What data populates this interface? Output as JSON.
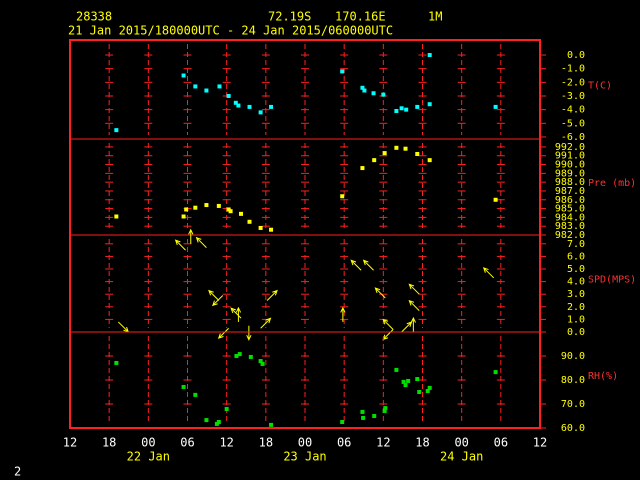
{
  "header": {
    "station": "28338",
    "latitude": "72.19S",
    "longitude": "170.16E",
    "level": "1M",
    "period": "21 Jan 2015/180000UTC - 24 Jan 2015/060000UTC"
  },
  "page_number": "2",
  "chart_data": [
    {
      "type": "scatter",
      "y_label": "T(C)",
      "color": "#00ffff",
      "xlim": [
        0,
        72
      ],
      "ylim": [
        -6.15,
        1.1
      ],
      "yticks": [
        {
          "value": 0,
          "label": "0.0"
        },
        {
          "value": -1,
          "label": "-1.0"
        },
        {
          "value": -2,
          "label": "-2.0"
        },
        {
          "value": -3,
          "label": "-3.0"
        },
        {
          "value": -4,
          "label": "-4.0"
        },
        {
          "value": -5,
          "label": "-5.0"
        },
        {
          "value": -6,
          "label": "-6.0"
        }
      ],
      "x": [
        7.1,
        17.4,
        19.2,
        20.9,
        22.9,
        24.3,
        25.4,
        25.8,
        27.5,
        29.2,
        30.8,
        41.7,
        44.8,
        45.1,
        46.5,
        48.0,
        50.0,
        50.8,
        51.5,
        53.2,
        55.1,
        55.1,
        65.2
      ],
      "values": [
        -5.5,
        -1.5,
        -2.3,
        -2.6,
        -2.3,
        -3.0,
        -3.5,
        -3.7,
        -3.8,
        -4.2,
        -3.8,
        -1.2,
        -2.4,
        -2.6,
        -2.8,
        -2.9,
        -4.1,
        -3.9,
        -4.0,
        -3.8,
        -3.6,
        0.0,
        -3.8
      ]
    },
    {
      "type": "scatter",
      "y_label": "Pre (mb)",
      "color": "#ffff00",
      "xlim": [
        0,
        72
      ],
      "ylim": [
        982,
        992.9
      ],
      "yticks": [
        {
          "value": 992,
          "label": "992.0"
        },
        {
          "value": 991,
          "label": "991.0"
        },
        {
          "value": 990,
          "label": "990.0"
        },
        {
          "value": 989,
          "label": "989.0"
        },
        {
          "value": 988,
          "label": "988.0"
        },
        {
          "value": 987,
          "label": "987.0"
        },
        {
          "value": 986,
          "label": "986.0"
        },
        {
          "value": 985,
          "label": "985.0"
        },
        {
          "value": 984,
          "label": "984.0"
        },
        {
          "value": 983,
          "label": "983.0"
        },
        {
          "value": 982,
          "label": "982.0"
        }
      ],
      "x": [
        7.1,
        17.4,
        17.8,
        19.2,
        20.9,
        22.8,
        24.3,
        24.6,
        26.2,
        27.5,
        29.2,
        30.8,
        41.7,
        44.8,
        46.6,
        48.2,
        50.0,
        51.4,
        53.2,
        55.1,
        65.2
      ],
      "values": [
        984.1,
        984.1,
        984.9,
        985.1,
        985.4,
        985.3,
        984.9,
        984.7,
        984.4,
        983.5,
        982.8,
        982.6,
        986.4,
        989.6,
        990.5,
        991.3,
        991.9,
        991.8,
        991.2,
        990.5,
        986.0
      ]
    },
    {
      "type": "vector",
      "y_label": "SPD(MPS)",
      "color": "#ffff00",
      "xlim": [
        0,
        72
      ],
      "ylim": [
        0,
        7.7
      ],
      "yticks": [
        {
          "value": 7,
          "label": "7.0"
        },
        {
          "value": 6,
          "label": "6.0"
        },
        {
          "value": 5,
          "label": "5.0"
        },
        {
          "value": 4,
          "label": "4.0"
        },
        {
          "value": 3,
          "label": "3.0"
        },
        {
          "value": 2,
          "label": "2.0"
        },
        {
          "value": 1,
          "label": "1.0"
        },
        {
          "value": 0,
          "label": "0.0"
        }
      ],
      "x": [
        7.4,
        17.7,
        18.5,
        20.9,
        22.8,
        23.4,
        24.3,
        25.8,
        26.2,
        27.4,
        29.2,
        30.2,
        41.8,
        44.6,
        46.5,
        48.3,
        49.5,
        49.5,
        50.8,
        52.6,
        53.5,
        53.5,
        64.9
      ],
      "values": [
        0.8,
        6.5,
        7.0,
        6.7,
        2.5,
        2.9,
        0.3,
        0.8,
        1.1,
        0.5,
        0.3,
        2.5,
        0.8,
        4.9,
        4.9,
        2.7,
        0.2,
        0.2,
        0.0,
        0.0,
        3.0,
        1.7,
        4.3
      ],
      "directions": [
        135,
        315,
        0,
        315,
        315,
        225,
        225,
        0,
        315,
        180,
        45,
        45,
        0,
        315,
        315,
        315,
        315,
        225,
        45,
        0,
        315,
        315,
        315
      ]
    },
    {
      "type": "scatter",
      "y_label": "RH(%)",
      "color": "#00e000",
      "xlim": [
        0,
        72
      ],
      "ylim": [
        60,
        100
      ],
      "yticks": [
        {
          "value": 90,
          "label": "90.0"
        },
        {
          "value": 80,
          "label": "80.0"
        },
        {
          "value": 70,
          "label": "70.0"
        },
        {
          "value": 60,
          "label": "60.0"
        }
      ],
      "x": [
        7.1,
        17.4,
        19.2,
        20.9,
        22.5,
        22.8,
        24.0,
        25.5,
        26.0,
        27.7,
        29.2,
        29.5,
        30.8,
        41.7,
        44.8,
        44.9,
        46.6,
        48.2,
        48.3,
        50.0,
        51.1,
        51.4,
        51.8,
        53.2,
        53.5,
        54.8,
        55.1,
        65.2
      ],
      "values": [
        87.1,
        77.1,
        73.8,
        63.3,
        61.7,
        62.5,
        67.9,
        90.0,
        90.8,
        89.6,
        87.9,
        86.7,
        61.3,
        62.5,
        66.7,
        64.2,
        65.0,
        67.1,
        68.3,
        84.2,
        79.2,
        77.9,
        79.6,
        80.4,
        75.0,
        75.4,
        76.7,
        83.3
      ],
      "xticks": [
        {
          "value": 0,
          "label": "12"
        },
        {
          "value": 6,
          "label": "18"
        },
        {
          "value": 12,
          "label": "00"
        },
        {
          "value": 18,
          "label": "06"
        },
        {
          "value": 24,
          "label": "12"
        },
        {
          "value": 30,
          "label": "18"
        },
        {
          "value": 36,
          "label": "00"
        },
        {
          "value": 42,
          "label": "06"
        },
        {
          "value": 48,
          "label": "12"
        },
        {
          "value": 54,
          "label": "18"
        },
        {
          "value": 60,
          "label": "00"
        },
        {
          "value": 66,
          "label": "06"
        },
        {
          "value": 72,
          "label": "12"
        }
      ],
      "day_labels": [
        {
          "value": 12,
          "label": "22 Jan"
        },
        {
          "value": 36,
          "label": "23 Jan"
        },
        {
          "value": 60,
          "label": "24 Jan"
        }
      ]
    }
  ]
}
